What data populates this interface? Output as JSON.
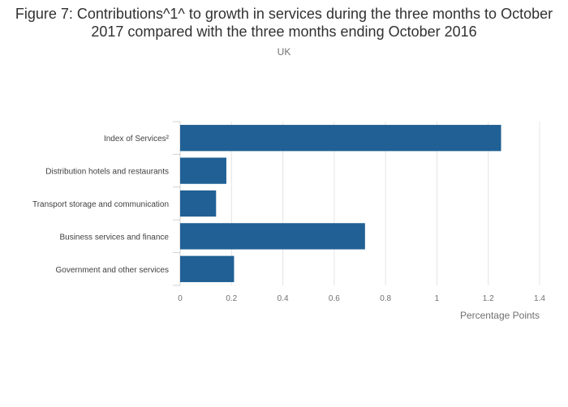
{
  "chart_data": {
    "type": "bar",
    "orientation": "horizontal",
    "title": "Figure 7: Contributions^1^ to growth in services during the three months to October 2017 compared with the three months ending October 2016",
    "subtitle": "UK",
    "categories": [
      "Index of Services²",
      "Distribution hotels and restaurants",
      "Transport storage and communication",
      "Business services and finance",
      "Government and other services"
    ],
    "values": [
      1.25,
      0.18,
      0.14,
      0.72,
      0.21
    ],
    "xlabel": "Percentage Points",
    "ylabel": "",
    "xlim": [
      0,
      1.4
    ],
    "xticks": [
      "0",
      "0.2",
      "0.4",
      "0.6",
      "0.8",
      "1",
      "1.2",
      "1.4"
    ],
    "grid": true,
    "legend": "none",
    "bar_color": "#206095"
  }
}
